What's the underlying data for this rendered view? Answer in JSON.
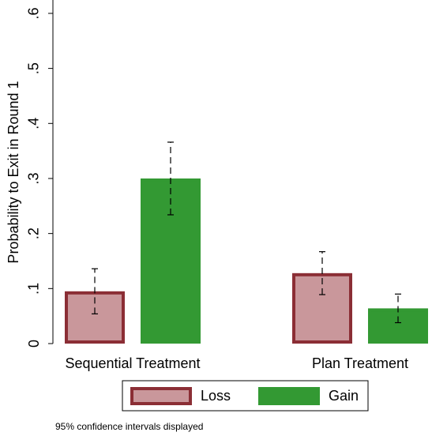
{
  "chart_data": {
    "type": "bar",
    "y_label": "Probability to Exit in Round 1",
    "categories": [
      "Sequential Treatment",
      "Plan Treatment"
    ],
    "series": [
      {
        "name": "Loss",
        "color": "#c9979b",
        "edge_color": "#8b2e35",
        "values": [
          0.095,
          0.128
        ],
        "errors": [
          0.041,
          0.039
        ]
      },
      {
        "name": "Gain",
        "color": "#339933",
        "edge_color": "#339933",
        "values": [
          0.3,
          0.064
        ],
        "errors": [
          0.066,
          0.026
        ]
      }
    ],
    "ylim": [
      0,
      0.62
    ],
    "yticks": [
      0,
      {
        "value": 0.1,
        "label": ".1"
      },
      {
        "value": 0.2,
        "label": ".2"
      },
      {
        "value": 0.3,
        "label": ".3"
      },
      {
        "value": 0.4,
        "label": ".4"
      },
      {
        "value": 0.5,
        "label": ".5"
      },
      {
        "value": 0.6,
        "label": ".6"
      }
    ],
    "note": "95% confidence intervals displayed"
  }
}
